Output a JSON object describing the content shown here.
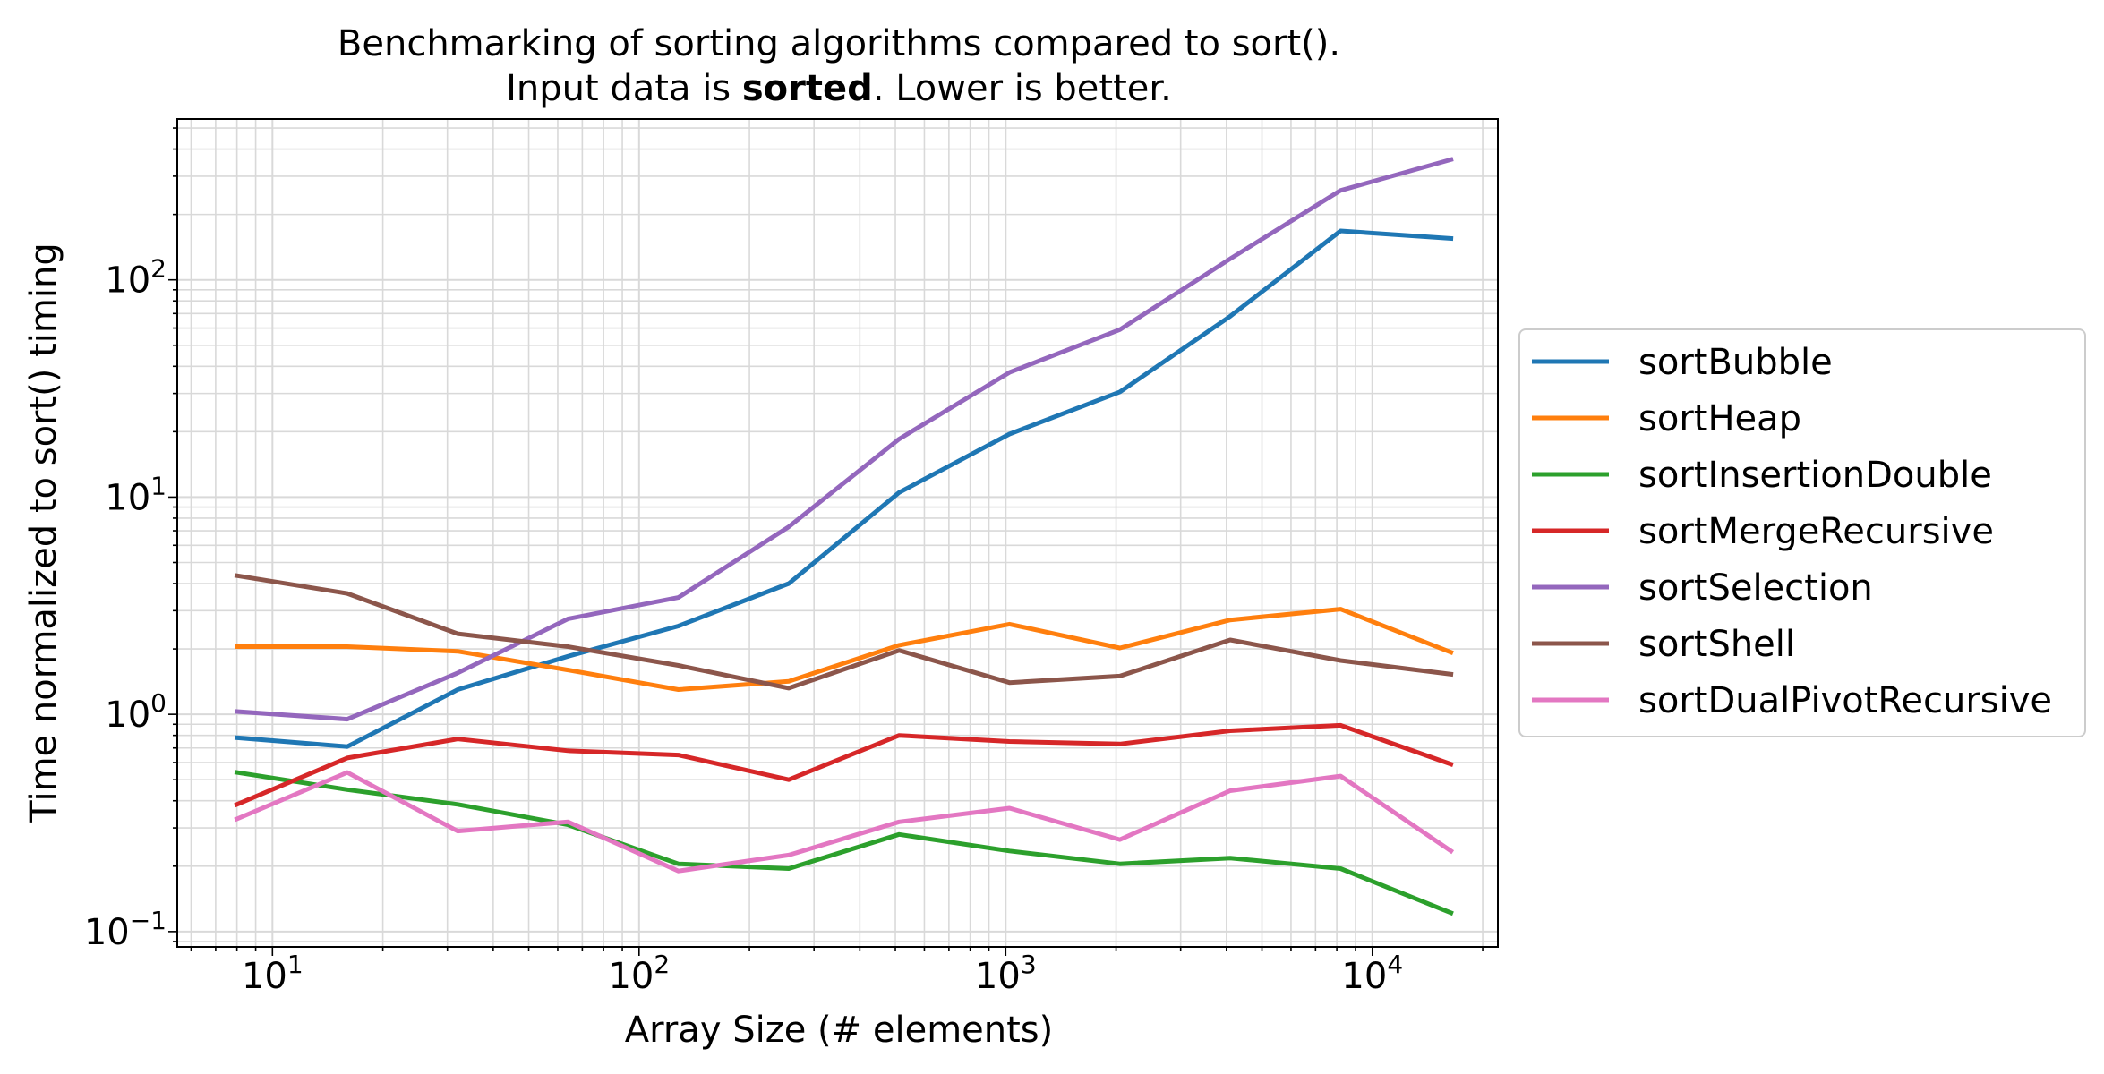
{
  "chart_data": {
    "type": "line",
    "title_lines": [
      "Benchmarking of sorting algorithms compared to sort().",
      "Input data is sorted. Lower is better."
    ],
    "title_line1": "Benchmarking of sorting algorithms compared to sort().",
    "title_line2_prefix": "Input data is ",
    "title_line2_bold": "sorted",
    "title_line2_suffix": ". Lower is better.",
    "xlabel": "Array Size (# elements)",
    "ylabel": "Time normalized to sort() timing",
    "x_scale": "log",
    "y_scale": "log",
    "xlim": [
      5.5,
      22000
    ],
    "ylim": [
      0.085,
      550
    ],
    "grid": true,
    "legend_position": "right, outside",
    "x_tick_labels": [
      {
        "base": "10",
        "exp": "1"
      },
      {
        "base": "10",
        "exp": "2"
      },
      {
        "base": "10",
        "exp": "3"
      },
      {
        "base": "10",
        "exp": "4"
      }
    ],
    "y_tick_labels": [
      {
        "base": "10",
        "exp": "−1"
      },
      {
        "base": "10",
        "exp": "0"
      },
      {
        "base": "10",
        "exp": "1"
      },
      {
        "base": "10",
        "exp": "2"
      }
    ],
    "x": [
      8,
      16,
      32,
      64,
      128,
      256,
      512,
      1024,
      2048,
      4096,
      8192,
      16384
    ],
    "series": [
      {
        "name": "sortBubble",
        "color": "#1f77b4",
        "values": [
          0.78,
          0.71,
          1.3,
          1.85,
          2.55,
          4.0,
          10.5,
          19.5,
          30.5,
          68,
          168,
          155
        ]
      },
      {
        "name": "sortHeap",
        "color": "#ff7f0e",
        "values": [
          2.05,
          2.05,
          1.95,
          1.6,
          1.3,
          1.42,
          2.08,
          2.6,
          2.02,
          2.72,
          3.05,
          1.93
        ]
      },
      {
        "name": "sortInsertionDouble",
        "color": "#2ca02c",
        "values": [
          0.54,
          0.45,
          0.385,
          0.31,
          0.205,
          0.195,
          0.28,
          0.235,
          0.205,
          0.218,
          0.195,
          0.122
        ]
      },
      {
        "name": "sortMergeRecursive",
        "color": "#d62728",
        "values": [
          0.385,
          0.63,
          0.77,
          0.68,
          0.65,
          0.5,
          0.8,
          0.75,
          0.73,
          0.84,
          0.89,
          0.59
        ]
      },
      {
        "name": "sortSelection",
        "color": "#9467bd",
        "values": [
          1.03,
          0.95,
          1.55,
          2.75,
          3.45,
          7.3,
          18.5,
          37.5,
          59,
          125,
          258,
          358
        ]
      },
      {
        "name": "sortShell",
        "color": "#8c564b",
        "values": [
          4.35,
          3.6,
          2.35,
          2.05,
          1.68,
          1.32,
          1.97,
          1.4,
          1.5,
          2.2,
          1.77,
          1.53
        ]
      },
      {
        "name": "sortDualPivotRecursive",
        "color": "#e377c2",
        "values": [
          0.33,
          0.54,
          0.29,
          0.32,
          0.19,
          0.225,
          0.32,
          0.37,
          0.265,
          0.445,
          0.52,
          0.235
        ]
      }
    ]
  }
}
